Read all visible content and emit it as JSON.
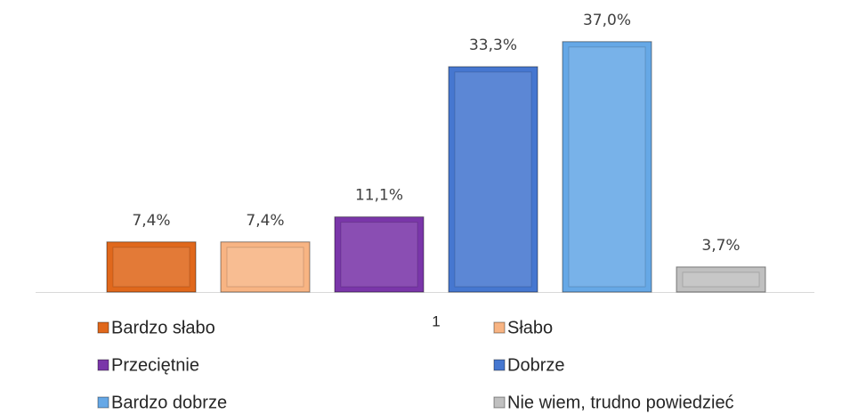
{
  "chart_data": {
    "type": "bar",
    "categories": [
      "1"
    ],
    "series": [
      {
        "name": "Bardzo słabo",
        "color": "#e0681c",
        "values": [
          7.4
        ],
        "value_labels": [
          "7,4%"
        ]
      },
      {
        "name": "Słabo",
        "color": "#f8b483",
        "values": [
          7.4
        ],
        "value_labels": [
          "7,4%"
        ]
      },
      {
        "name": "Przeciętnie",
        "color": "#7a36a9",
        "values": [
          11.1
        ],
        "value_labels": [
          "11,1%"
        ]
      },
      {
        "name": "Dobrze",
        "color": "#4677d0",
        "values": [
          33.3
        ],
        "value_labels": [
          "33,3%"
        ]
      },
      {
        "name": "Bardzo dobrze",
        "color": "#66a8e6",
        "values": [
          37.0
        ],
        "value_labels": [
          "37,0%"
        ]
      },
      {
        "name": "Nie wiem, trudno powiedzieć",
        "color": "#c0c0c0",
        "values": [
          3.7
        ],
        "value_labels": [
          "3,7%"
        ]
      }
    ]
  }
}
